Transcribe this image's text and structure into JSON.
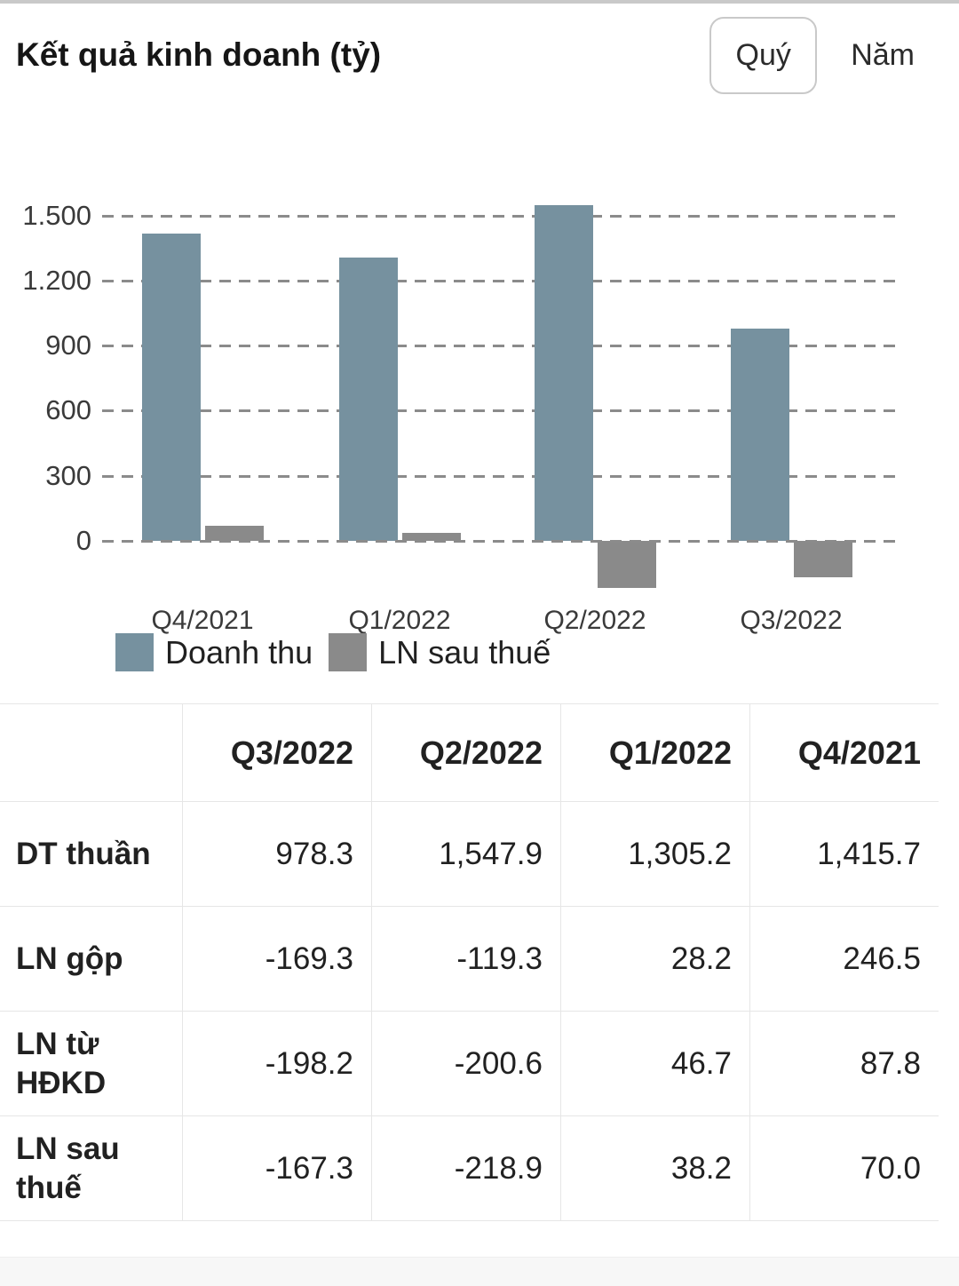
{
  "header": {
    "title": "Kết quả kinh doanh (tỷ)",
    "toggle": {
      "quarter_label": "Quý",
      "year_label": "Năm",
      "selected": "Quý"
    }
  },
  "chart_data": {
    "type": "bar",
    "title": "Kết quả kinh doanh (tỷ)",
    "categories": [
      "Q4/2021",
      "Q1/2022",
      "Q2/2022",
      "Q3/2022"
    ],
    "series": [
      {
        "name": "Doanh thu",
        "color": "#76919F",
        "values": [
          1415.7,
          1305.2,
          1547.9,
          978.3
        ]
      },
      {
        "name": "LN sau thuế",
        "color": "#8A8A8A",
        "values": [
          70.0,
          38.2,
          -218.9,
          -167.3
        ]
      }
    ],
    "xlabel": "",
    "ylabel": "",
    "ylim": [
      -260,
      1600
    ],
    "yticks": [
      0,
      300,
      600,
      900,
      1200,
      1500
    ],
    "ytick_labels": [
      "0",
      "300",
      "600",
      "900",
      "1.200",
      "1.500"
    ],
    "grid": "horizontal-dashed",
    "gridline_color": "#8b8b8b",
    "legend_position": "bottom-left"
  },
  "table": {
    "columns": [
      "Q3/2022",
      "Q2/2022",
      "Q1/2022",
      "Q4/2021"
    ],
    "rows": [
      {
        "label": "DT thuần",
        "values": [
          "978.3",
          "1,547.9",
          "1,305.2",
          "1,415.7"
        ]
      },
      {
        "label": "LN gộp",
        "values": [
          "-169.3",
          "-119.3",
          "28.2",
          "246.5"
        ]
      },
      {
        "label": "LN từ HĐKD",
        "values": [
          "-198.2",
          "-200.6",
          "46.7",
          "87.8"
        ]
      },
      {
        "label": "LN sau thuế",
        "values": [
          "-167.3",
          "-218.9",
          "38.2",
          "70.0"
        ]
      }
    ]
  }
}
